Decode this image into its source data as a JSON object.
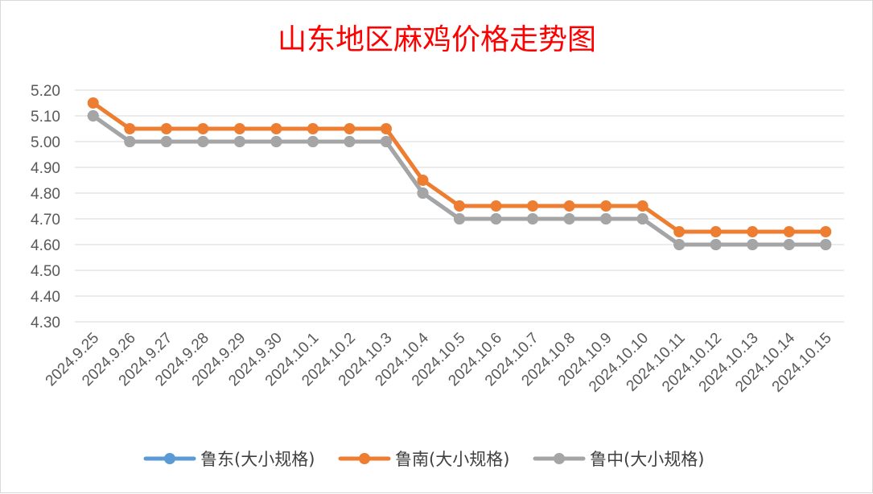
{
  "chart_data": {
    "type": "line",
    "title": "山东地区麻鸡价格走势图",
    "categories": [
      "2024.9.25",
      "2024.9.26",
      "2024.9.27",
      "2024.9.28",
      "2024.9.29",
      "2024.9.30",
      "2024.10.1",
      "2024.10.2",
      "2024.10.3",
      "2024.10.4",
      "2024.10.5",
      "2024.10.6",
      "2024.10.7",
      "2024.10.8",
      "2024.10.9",
      "2024.10.10",
      "2024.10.11",
      "2024.10.12",
      "2024.10.13",
      "2024.10.14",
      "2024.10.15"
    ],
    "yticks": [
      "5.20",
      "5.10",
      "5.00",
      "4.90",
      "4.80",
      "4.70",
      "4.60",
      "4.50",
      "4.40",
      "4.30"
    ],
    "ylim": [
      4.3,
      5.2
    ],
    "series": [
      {
        "name": "鲁东(大小规格)",
        "color": "#5b9bd5",
        "values": [
          5.1,
          5.0,
          5.0,
          5.0,
          5.0,
          5.0,
          5.0,
          5.0,
          5.0,
          4.8,
          4.7,
          4.7,
          4.7,
          4.7,
          4.7,
          4.7,
          4.6,
          4.6,
          4.6,
          4.6,
          4.6
        ]
      },
      {
        "name": "鲁南(大小规格)",
        "color": "#ed7d31",
        "values": [
          5.15,
          5.05,
          5.05,
          5.05,
          5.05,
          5.05,
          5.05,
          5.05,
          5.05,
          4.85,
          4.75,
          4.75,
          4.75,
          4.75,
          4.75,
          4.75,
          4.65,
          4.65,
          4.65,
          4.65,
          4.65
        ]
      },
      {
        "name": "鲁中(大小规格)",
        "color": "#a5a5a5",
        "values": [
          5.1,
          5.0,
          5.0,
          5.0,
          5.0,
          5.0,
          5.0,
          5.0,
          5.0,
          4.8,
          4.7,
          4.7,
          4.7,
          4.7,
          4.7,
          4.7,
          4.6,
          4.6,
          4.6,
          4.6,
          4.6
        ]
      }
    ],
    "grid": true,
    "legend_position": "bottom"
  }
}
